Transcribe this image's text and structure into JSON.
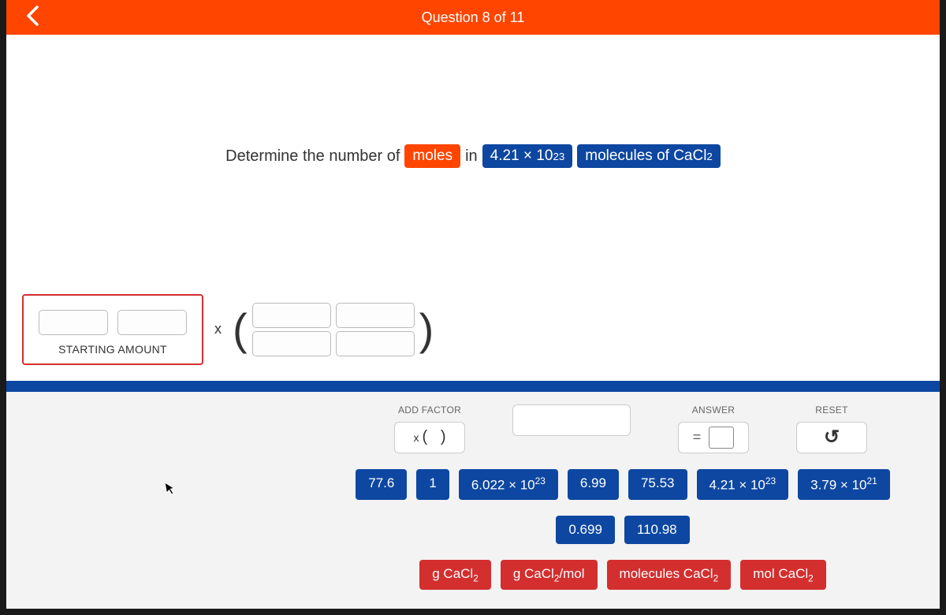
{
  "header": {
    "counter": "Question 8 of 11"
  },
  "question": {
    "pre": "Determine the number of",
    "chip1": "moles",
    "mid": "in",
    "chip2_html": "4.21 × 10<sup>23</sup>",
    "chip3_html": "molecules of CaCl<sub>2</sub>"
  },
  "starting": {
    "label": "STARTING AMOUNT",
    "mult": "x"
  },
  "controls": {
    "add_factor_label": "ADD FACTOR",
    "add_factor_btn_html": "<span style='font-size:14px;margin-right:4px'>x</span>( &nbsp; )",
    "answer_label": "ANSWER",
    "answer_eq": "=",
    "reset_label": "RESET",
    "reset_glyph": "↺"
  },
  "tiles": {
    "row1": [
      {
        "html": "77.6",
        "red": false
      },
      {
        "html": "1",
        "red": false
      },
      {
        "html": "6.022 × 10<sup>23</sup>",
        "red": false
      },
      {
        "html": "6.99",
        "red": false
      },
      {
        "html": "75.53",
        "red": false
      },
      {
        "html": "4.21 × 10<sup>23</sup>",
        "red": false
      },
      {
        "html": "3.79 × 10<sup>21</sup>",
        "red": false
      }
    ],
    "row2": [
      {
        "html": "0.699",
        "red": false
      },
      {
        "html": "110.98",
        "red": false
      }
    ],
    "row3": [
      {
        "html": "g CaCl<sub>2</sub>",
        "red": true
      },
      {
        "html": "g CaCl<sub>2</sub>/mol",
        "red": true
      },
      {
        "html": "molecules CaCl<sub>2</sub>",
        "red": true
      },
      {
        "html": "mol CaCl<sub>2</sub>",
        "red": true
      }
    ]
  },
  "colors": {
    "orange": "#ff4500",
    "blue": "#0d47a1",
    "red": "#d32f2f"
  }
}
